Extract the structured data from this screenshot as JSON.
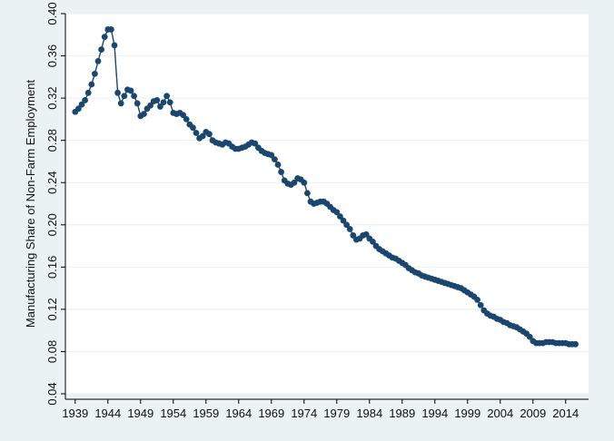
{
  "chart_data": {
    "type": "scatter",
    "title": "",
    "xlabel": "",
    "ylabel": "Manufacturing Share of Non-Farm Employment",
    "xlim": [
      1937.5,
      2017.5
    ],
    "ylim": [
      0.04,
      0.4
    ],
    "xticks": [
      1939,
      1944,
      1949,
      1954,
      1959,
      1964,
      1969,
      1974,
      1979,
      1984,
      1989,
      1994,
      1999,
      2004,
      2009,
      2014
    ],
    "xtick_labels": [
      "1939",
      "1944",
      "1949",
      "1954",
      "1959",
      "1964",
      "1969",
      "1974",
      "1979",
      "1984",
      "1989",
      "1994",
      "1999",
      "2004",
      "2009",
      "2014"
    ],
    "yticks": [
      0.04,
      0.08,
      0.12,
      0.16,
      0.2,
      0.24,
      0.28,
      0.32,
      0.36,
      0.4
    ],
    "ytick_labels": [
      "0.04",
      "0.08",
      "0.12",
      "0.16",
      "0.20",
      "0.24",
      "0.28",
      "0.32",
      "0.36",
      "0.40"
    ],
    "grid": "horizontal",
    "colors": {
      "series": "#1a476f",
      "plot_bg": "#ffffff",
      "outer_bg": "#eaf2f3",
      "grid": "#eaf2f3"
    },
    "series": [
      {
        "mode": "lines+markers",
        "x": [
          1939.0,
          1939.5,
          1940.0,
          1940.5,
          1941.0,
          1941.5,
          1942.0,
          1942.5,
          1943.0,
          1943.5,
          1944.0,
          1944.5,
          1945.0,
          1945.5,
          1946.0,
          1946.5,
          1947.0,
          1947.5,
          1948.0,
          1948.5,
          1949.0,
          1949.5,
          1950.0,
          1950.5,
          1951.0,
          1951.5,
          1952.0,
          1952.5,
          1953.0,
          1953.5,
          1954.0,
          1954.5,
          1955.0,
          1955.5,
          1956.0,
          1956.5,
          1957.0,
          1957.5,
          1958.0,
          1958.5,
          1959.0,
          1959.5,
          1960.0,
          1960.5,
          1961.0,
          1961.5,
          1962.0,
          1962.5,
          1963.0,
          1963.5,
          1964.0,
          1964.5,
          1965.0,
          1965.5,
          1966.0,
          1966.5,
          1967.0,
          1967.5,
          1968.0,
          1968.5,
          1969.0,
          1969.5,
          1970.0,
          1970.5,
          1971.0,
          1971.5,
          1972.0,
          1972.5,
          1973.0,
          1973.5,
          1974.0,
          1974.5,
          1975.0,
          1975.5,
          1976.0,
          1976.5,
          1977.0,
          1977.5,
          1978.0,
          1978.5,
          1979.0,
          1979.5,
          1980.0,
          1980.5,
          1981.0,
          1981.5,
          1982.0,
          1982.5,
          1983.0,
          1983.5,
          1984.0,
          1984.5,
          1985.0,
          1985.5,
          1986.0,
          1986.5,
          1987.0,
          1987.5,
          1988.0,
          1988.5,
          1989.0,
          1989.5,
          1990.0,
          1990.5,
          1991.0,
          1991.5,
          1992.0,
          1992.5,
          1993.0,
          1993.5,
          1994.0,
          1994.5,
          1995.0,
          1995.5,
          1996.0,
          1996.5,
          1997.0,
          1997.5,
          1998.0,
          1998.5,
          1999.0,
          1999.5,
          2000.0,
          2000.5,
          2001.0,
          2001.5,
          2002.0,
          2002.5,
          2003.0,
          2003.5,
          2004.0,
          2004.5,
          2005.0,
          2005.5,
          2006.0,
          2006.5,
          2007.0,
          2007.5,
          2008.0,
          2008.5,
          2009.0,
          2009.5,
          2010.0,
          2010.5,
          2011.0,
          2011.5,
          2012.0,
          2012.5,
          2013.0,
          2013.5,
          2014.0,
          2014.5,
          2015.0,
          2015.5
        ],
        "y": [
          0.307,
          0.31,
          0.314,
          0.318,
          0.325,
          0.333,
          0.343,
          0.355,
          0.366,
          0.378,
          0.385,
          0.385,
          0.37,
          0.325,
          0.315,
          0.322,
          0.328,
          0.327,
          0.322,
          0.315,
          0.303,
          0.305,
          0.31,
          0.313,
          0.317,
          0.318,
          0.312,
          0.316,
          0.322,
          0.316,
          0.306,
          0.305,
          0.306,
          0.304,
          0.3,
          0.295,
          0.292,
          0.287,
          0.282,
          0.284,
          0.288,
          0.286,
          0.28,
          0.278,
          0.277,
          0.276,
          0.278,
          0.277,
          0.274,
          0.272,
          0.272,
          0.273,
          0.274,
          0.276,
          0.278,
          0.277,
          0.273,
          0.27,
          0.268,
          0.267,
          0.266,
          0.262,
          0.257,
          0.25,
          0.242,
          0.239,
          0.238,
          0.24,
          0.244,
          0.243,
          0.24,
          0.23,
          0.222,
          0.22,
          0.221,
          0.222,
          0.222,
          0.22,
          0.217,
          0.214,
          0.212,
          0.208,
          0.204,
          0.2,
          0.196,
          0.19,
          0.186,
          0.187,
          0.19,
          0.191,
          0.187,
          0.184,
          0.18,
          0.177,
          0.175,
          0.173,
          0.171,
          0.169,
          0.168,
          0.166,
          0.164,
          0.162,
          0.159,
          0.157,
          0.155,
          0.154,
          0.152,
          0.151,
          0.15,
          0.149,
          0.148,
          0.147,
          0.146,
          0.145,
          0.144,
          0.143,
          0.142,
          0.141,
          0.14,
          0.138,
          0.136,
          0.134,
          0.132,
          0.129,
          0.124,
          0.119,
          0.116,
          0.114,
          0.113,
          0.111,
          0.11,
          0.108,
          0.107,
          0.105,
          0.104,
          0.103,
          0.101,
          0.099,
          0.097,
          0.094,
          0.09,
          0.088,
          0.088,
          0.088,
          0.089,
          0.089,
          0.089,
          0.088,
          0.088,
          0.088,
          0.088,
          0.087,
          0.087,
          0.087
        ]
      }
    ]
  }
}
